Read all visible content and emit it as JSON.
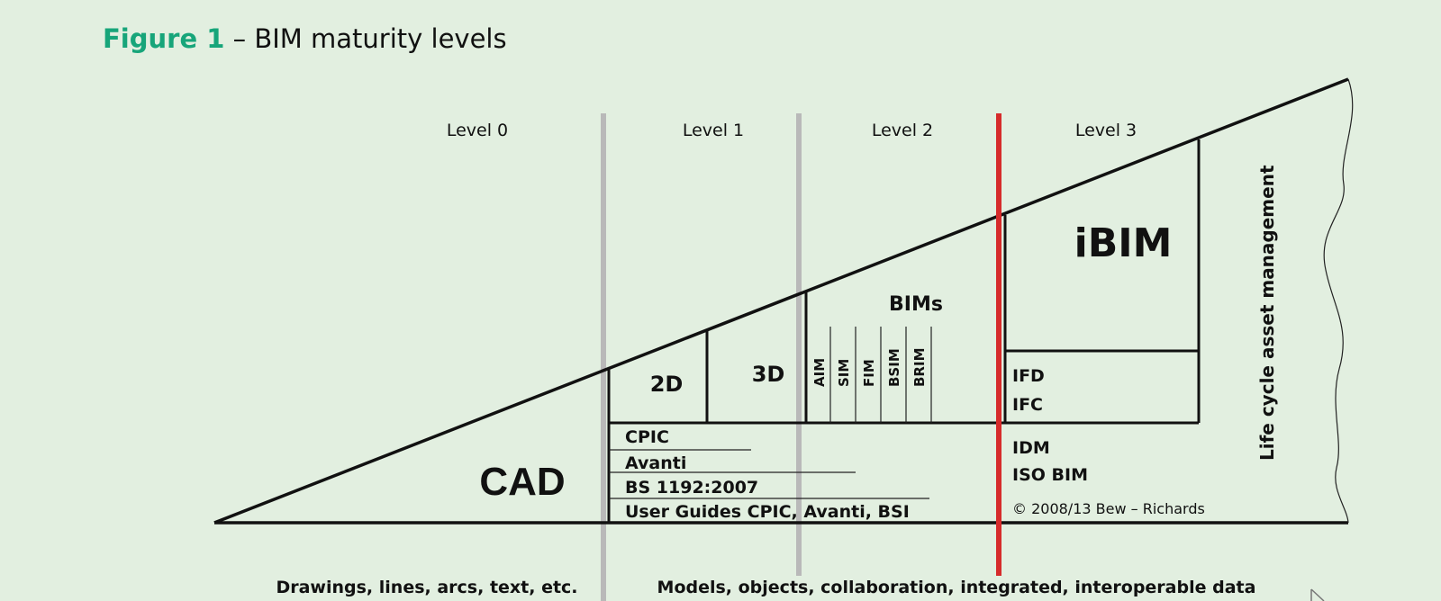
{
  "figure": {
    "label": "Figure 1",
    "separator": " – ",
    "title": "BIM maturity levels"
  },
  "levels": [
    "Level 0",
    "Level 1",
    "Level 2",
    "Level 3"
  ],
  "blocks": {
    "cad": "CAD",
    "two_d": "2D",
    "three_d": "3D",
    "bims": "BIMs",
    "ibim": "iBIM"
  },
  "bims_items": [
    "AIM",
    "SIM",
    "FIM",
    "BSIM",
    "BRIM"
  ],
  "level3_items": [
    "IFD",
    "IFC",
    "IDM",
    "ISO BIM"
  ],
  "standards": [
    "CPIC",
    "Avanti",
    "BS 1192:2007",
    "User Guides CPIC, Avanti, BSI"
  ],
  "copyright": "©  2008/13 Bew – Richards",
  "lifecycle": "Life cycle asset management",
  "footer": {
    "left": "Drawings, lines, arcs, text, etc.",
    "right": "Models, objects, collaboration, integrated, interoperable data"
  },
  "colors": {
    "background": "#e2efe0",
    "title_accent": "#17a57a",
    "level_divider": "#b9b9b9",
    "level3_divider": "#d62b2b",
    "lines": "#111111"
  }
}
